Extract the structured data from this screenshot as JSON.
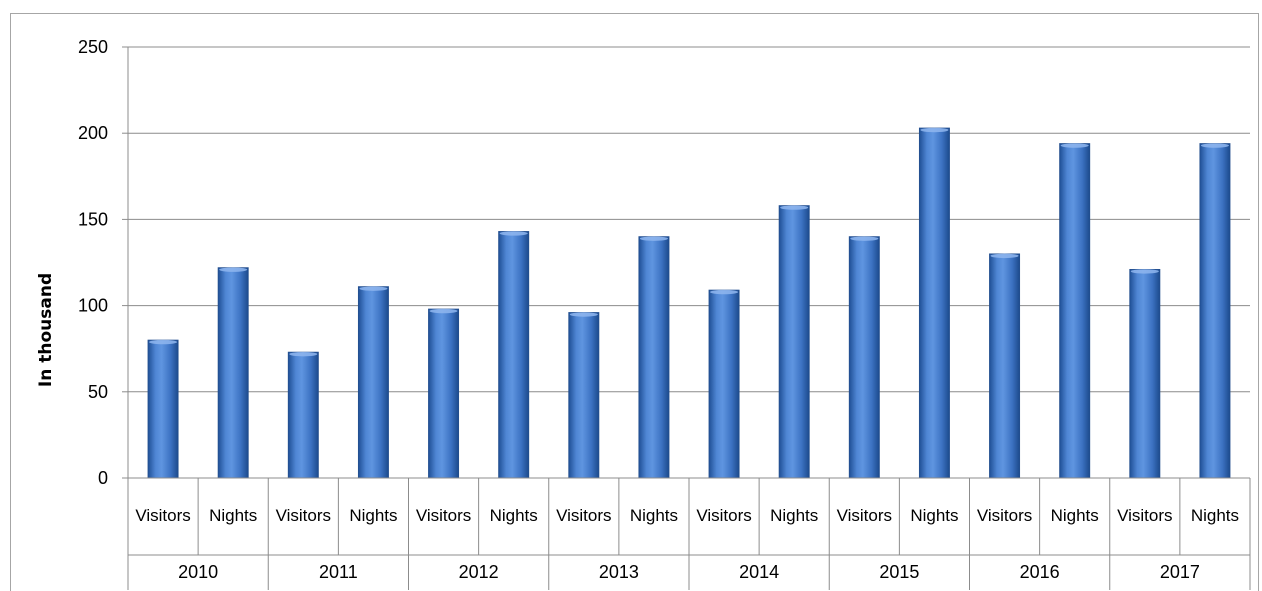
{
  "chart_data": {
    "type": "bar",
    "ylabel": "In thousand",
    "ylim": [
      0,
      250
    ],
    "yticks": [
      0,
      50,
      100,
      150,
      200,
      250
    ],
    "grid": true,
    "legend": "none",
    "bar_color": "#3a70c0",
    "groups": [
      "2010",
      "2011",
      "2012",
      "2013",
      "2014",
      "2015",
      "2016",
      "2017"
    ],
    "subcategories": [
      "Visitors",
      "Nights"
    ],
    "values": [
      [
        80,
        122
      ],
      [
        73,
        111
      ],
      [
        98,
        143
      ],
      [
        96,
        140
      ],
      [
        109,
        158
      ],
      [
        140,
        203
      ],
      [
        130,
        194
      ],
      [
        121,
        194
      ]
    ]
  }
}
